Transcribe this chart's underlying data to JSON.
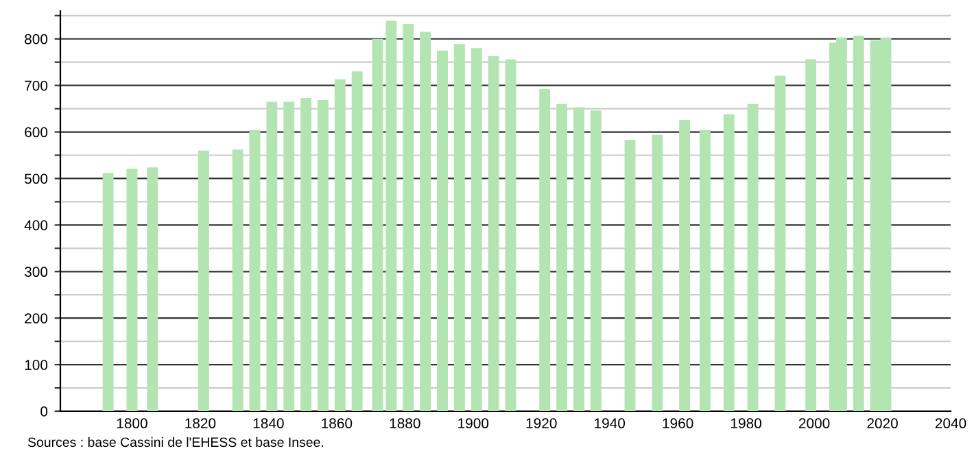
{
  "chart_data": {
    "type": "bar",
    "color": "#b3e5b3",
    "x": [
      1793,
      1800,
      1806,
      1821,
      1831,
      1836,
      1841,
      1846,
      1851,
      1856,
      1861,
      1866,
      1872,
      1876,
      1881,
      1886,
      1891,
      1896,
      1901,
      1906,
      1911,
      1921,
      1926,
      1931,
      1936,
      1946,
      1954,
      1962,
      1968,
      1975,
      1982,
      1990,
      1999,
      2006,
      2008,
      2013,
      2018,
      2021
    ],
    "values": [
      512,
      521,
      524,
      560,
      562,
      604,
      665,
      665,
      673,
      669,
      713,
      730,
      800,
      839,
      832,
      815,
      775,
      789,
      780,
      763,
      756,
      692,
      660,
      653,
      646,
      583,
      594,
      626,
      604,
      638,
      660,
      721,
      756,
      792,
      803,
      807,
      797,
      803
    ],
    "xlim": [
      1779,
      2040
    ],
    "xticks": [
      1800,
      1820,
      1840,
      1860,
      1880,
      1900,
      1920,
      1940,
      1960,
      1980,
      2000,
      2020,
      2040
    ],
    "ylim": [
      0,
      860
    ],
    "yticks": [
      0,
      {
        "value": 50,
        "label": null
      },
      100,
      {
        "value": 150,
        "label": null
      },
      200,
      {
        "value": 250,
        "label": null
      },
      300,
      {
        "value": 350,
        "label": null
      },
      400,
      {
        "value": 450,
        "label": null
      },
      500,
      {
        "value": 550,
        "label": null
      },
      600,
      {
        "value": 650,
        "label": null
      },
      700,
      {
        "value": 750,
        "label": null
      },
      800,
      {
        "value": 850,
        "label": null
      }
    ],
    "grid": "y",
    "annotations": [
      "Sources : base Cassini de l'EHESS et base Insee."
    ]
  }
}
